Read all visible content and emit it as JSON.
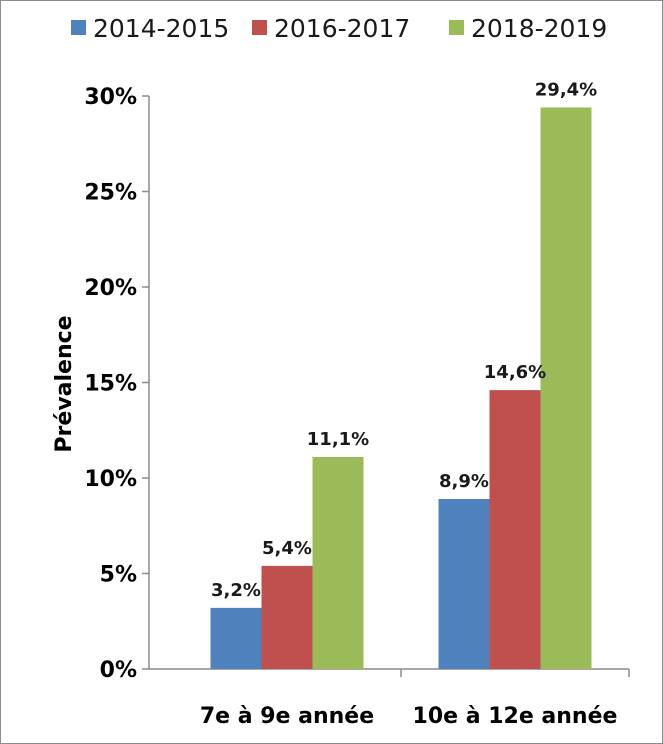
{
  "chart_data": {
    "type": "bar",
    "title": "",
    "xlabel": "",
    "ylabel": "Prévalence",
    "categories": [
      "7e à 9e année",
      "10e à 12e année"
    ],
    "series": [
      {
        "name": "2014-2015",
        "color": "#4f81bd",
        "values": [
          3.2,
          8.9
        ],
        "labels": [
          "3,2%",
          "8,9%"
        ]
      },
      {
        "name": "2016-2017",
        "color": "#c0504d",
        "values": [
          5.4,
          14.6
        ],
        "labels": [
          "5,4%",
          "14,6%"
        ]
      },
      {
        "name": "2018-2019",
        "color": "#9bbb59",
        "values": [
          11.1,
          29.4
        ],
        "labels": [
          "11,1%",
          "29,4%"
        ]
      }
    ],
    "ylim": [
      0,
      30
    ],
    "yticks": [
      {
        "value": 0,
        "label": "0%"
      },
      {
        "value": 5,
        "label": "5%"
      },
      {
        "value": 10,
        "label": "10%"
      },
      {
        "value": 15,
        "label": "15%"
      },
      {
        "value": 20,
        "label": "20%"
      },
      {
        "value": 25,
        "label": "25%"
      },
      {
        "value": 30,
        "label": "30%"
      }
    ],
    "grid": false,
    "legend_position": "top"
  }
}
